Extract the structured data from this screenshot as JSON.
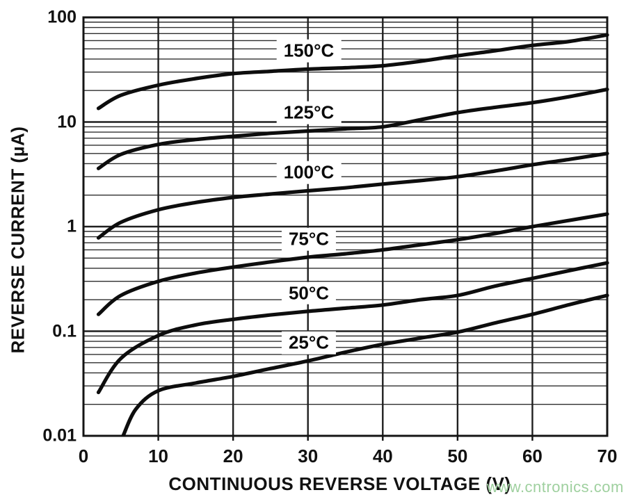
{
  "chart_data": {
    "type": "line",
    "title": "",
    "xlabel": "CONTINUOUS REVERSE VOLTAGE (V)",
    "ylabel": "REVERSE CURRENT (µA)",
    "x_axis": {
      "scale": "linear",
      "min": 0,
      "max": 70,
      "tick_labels": [
        "0",
        "10",
        "20",
        "30",
        "40",
        "50",
        "60",
        "70"
      ],
      "tick_values": [
        0,
        10,
        20,
        30,
        40,
        50,
        60,
        70
      ]
    },
    "y_axis": {
      "scale": "log",
      "min": 0.01,
      "max": 100,
      "tick_labels": [
        "100",
        "10",
        "1",
        "0.1",
        "0.01"
      ],
      "tick_values": [
        100,
        10,
        1,
        0.1,
        0.01
      ]
    },
    "grid": "on (log decades with minor lines 2-9, vertical every 10 V)",
    "legend_position": "inline labels on plot",
    "series": [
      {
        "name": "150°C",
        "points": [
          [
            2,
            13.5
          ],
          [
            5,
            18
          ],
          [
            10,
            22.5
          ],
          [
            15,
            26
          ],
          [
            20,
            29
          ],
          [
            25,
            30.5
          ],
          [
            30,
            32
          ],
          [
            35,
            33
          ],
          [
            40,
            34.5
          ],
          [
            45,
            38
          ],
          [
            50,
            43
          ],
          [
            55,
            48
          ],
          [
            60,
            54
          ],
          [
            65,
            59
          ],
          [
            70,
            68
          ]
        ]
      },
      {
        "name": "125°C",
        "points": [
          [
            2,
            3.6
          ],
          [
            5,
            4.9
          ],
          [
            10,
            6.1
          ],
          [
            15,
            6.8
          ],
          [
            20,
            7.3
          ],
          [
            25,
            7.8
          ],
          [
            30,
            8.2
          ],
          [
            35,
            8.6
          ],
          [
            40,
            9.0
          ],
          [
            45,
            10.5
          ],
          [
            50,
            12.3
          ],
          [
            55,
            13.8
          ],
          [
            60,
            15.3
          ],
          [
            65,
            17.5
          ],
          [
            70,
            20.5
          ]
        ]
      },
      {
        "name": "100°C",
        "points": [
          [
            2,
            0.78
          ],
          [
            5,
            1.1
          ],
          [
            10,
            1.45
          ],
          [
            15,
            1.7
          ],
          [
            20,
            1.9
          ],
          [
            25,
            2.05
          ],
          [
            30,
            2.2
          ],
          [
            35,
            2.35
          ],
          [
            40,
            2.55
          ],
          [
            45,
            2.75
          ],
          [
            50,
            3.0
          ],
          [
            55,
            3.4
          ],
          [
            60,
            3.9
          ],
          [
            65,
            4.4
          ],
          [
            70,
            5.0
          ]
        ]
      },
      {
        "name": "75°C",
        "points": [
          [
            2,
            0.145
          ],
          [
            5,
            0.22
          ],
          [
            10,
            0.3
          ],
          [
            15,
            0.36
          ],
          [
            20,
            0.41
          ],
          [
            25,
            0.46
          ],
          [
            30,
            0.51
          ],
          [
            35,
            0.55
          ],
          [
            40,
            0.6
          ],
          [
            45,
            0.67
          ],
          [
            50,
            0.75
          ],
          [
            55,
            0.86
          ],
          [
            60,
            1.0
          ],
          [
            65,
            1.15
          ],
          [
            70,
            1.32
          ]
        ]
      },
      {
        "name": "50°C",
        "points": [
          [
            2,
            0.026
          ],
          [
            5,
            0.055
          ],
          [
            10,
            0.091
          ],
          [
            15,
            0.115
          ],
          [
            20,
            0.13
          ],
          [
            25,
            0.143
          ],
          [
            30,
            0.155
          ],
          [
            35,
            0.166
          ],
          [
            40,
            0.178
          ],
          [
            45,
            0.2
          ],
          [
            50,
            0.22
          ],
          [
            55,
            0.27
          ],
          [
            60,
            0.32
          ],
          [
            65,
            0.38
          ],
          [
            70,
            0.45
          ]
        ]
      },
      {
        "name": "25°C",
        "points": [
          [
            5.3,
            0.01
          ],
          [
            7,
            0.018
          ],
          [
            10,
            0.027
          ],
          [
            15,
            0.032
          ],
          [
            20,
            0.037
          ],
          [
            25,
            0.044
          ],
          [
            30,
            0.052
          ],
          [
            35,
            0.063
          ],
          [
            40,
            0.075
          ],
          [
            45,
            0.086
          ],
          [
            50,
            0.098
          ],
          [
            55,
            0.12
          ],
          [
            60,
            0.145
          ],
          [
            65,
            0.18
          ],
          [
            70,
            0.22
          ]
        ]
      }
    ]
  },
  "colors": {
    "background": "#ffffff",
    "curve": "#0d0d0d",
    "grid_major": "#1f1f1f",
    "grid_minor": "#2e2e2e",
    "frame": "#141414",
    "text": "#111111",
    "label_box": "#ffffff",
    "watermark": "#9fd09f"
  },
  "watermark": {
    "text": "www.cntronics.com"
  }
}
